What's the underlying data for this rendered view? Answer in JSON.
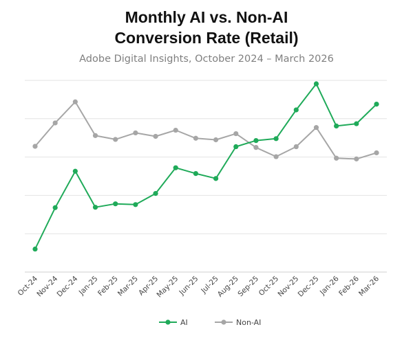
{
  "chart_data": {
    "type": "line",
    "title_line1": "Monthly AI vs. Non-AI",
    "title_line2": "Conversion Rate (Retail)",
    "subtitle": "Adobe Digital Insights, October 2024 – March 2026",
    "xlabel": "",
    "ylabel": "",
    "categories": [
      "Oct-24",
      "Nov-24",
      "Dec-24",
      "Jan-25",
      "Feb-25",
      "Mar-25",
      "Apr-25",
      "May-25",
      "Jun-25",
      "Jul-25",
      "Aug-25",
      "Sep-25",
      "Oct-25",
      "Nov-25",
      "Dec-25",
      "Jan-26",
      "Feb-26",
      "Mar-26"
    ],
    "ylim": [
      0,
      5
    ],
    "y_gridlines": [
      1,
      2,
      3,
      4,
      5
    ],
    "y_tick_labels_shown": false,
    "grid": true,
    "legend_position": "bottom",
    "series": [
      {
        "name": "AI",
        "color": "#1faa59",
        "values": [
          0.6,
          1.68,
          2.63,
          1.69,
          1.78,
          1.76,
          2.05,
          2.72,
          2.57,
          2.44,
          3.27,
          3.43,
          3.48,
          4.23,
          4.91,
          3.81,
          3.87,
          4.38
        ]
      },
      {
        "name": "Non-AI",
        "color": "#a6a6a6",
        "values": [
          3.28,
          3.89,
          4.44,
          3.56,
          3.46,
          3.63,
          3.54,
          3.7,
          3.49,
          3.45,
          3.61,
          3.25,
          3.01,
          3.27,
          3.77,
          2.97,
          2.95,
          3.11
        ]
      }
    ]
  }
}
